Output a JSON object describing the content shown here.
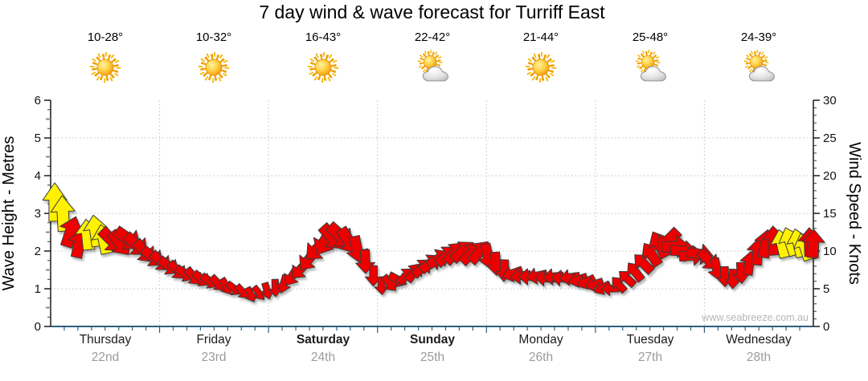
{
  "title": "7 day wind & wave forecast for Turriff East",
  "watermark": "www.seabreeze.com.au",
  "days": [
    {
      "name": "Thursday",
      "date": "22nd",
      "temp": "10-28°",
      "icon": "sunny",
      "weekend": false
    },
    {
      "name": "Friday",
      "date": "23rd",
      "temp": "10-32°",
      "icon": "sunny",
      "weekend": false
    },
    {
      "name": "Saturday",
      "date": "24th",
      "temp": "16-43°",
      "icon": "sunny",
      "weekend": true
    },
    {
      "name": "Sunday",
      "date": "25th",
      "temp": "22-42°",
      "icon": "partly-cloudy",
      "weekend": true
    },
    {
      "name": "Monday",
      "date": "26th",
      "temp": "21-44°",
      "icon": "sunny",
      "weekend": false
    },
    {
      "name": "Tuesday",
      "date": "27th",
      "temp": "25-48°",
      "icon": "partly-cloudy",
      "weekend": false
    },
    {
      "name": "Wednesday",
      "date": "28th",
      "temp": "24-39°",
      "icon": "partly-cloudy",
      "weekend": false
    }
  ],
  "left_axis": {
    "label": "Wave Height - Metres",
    "min": 0,
    "max": 6,
    "major_ticks": [
      0,
      1,
      2,
      3,
      4,
      5,
      6
    ]
  },
  "right_axis": {
    "label": "Wind Speed - Knots",
    "min": 0,
    "max": 30,
    "major_ticks": [
      0,
      5,
      10,
      15,
      20,
      25,
      30
    ]
  },
  "colors": {
    "arrow_red": "#ec0000",
    "arrow_yellow": "#fff100",
    "x_axis_blue": "#2b5f7f",
    "grid_gray": "#c0c0c0",
    "date_gray": "#9b9b9b",
    "watermark_gray": "#b6b6b6"
  },
  "chart_data": {
    "type": "wind-arrows",
    "title": "7 day wind & wave forecast for Turriff East",
    "x_unit": "hours_from_thursday_00",
    "x_range": [
      0,
      168
    ],
    "y_right_unit": "knots",
    "y_right_range": [
      0,
      30
    ],
    "y_left_unit": "metres",
    "y_left_range": [
      0,
      6
    ],
    "grid": true,
    "point_format": [
      "hour",
      "knots",
      "direction_deg_0_is_up",
      "color_y_or_r"
    ],
    "points": [
      [
        0.9,
        16.5,
        0,
        "y"
      ],
      [
        2.7,
        15.0,
        357,
        "y"
      ],
      [
        4.5,
        12.6,
        18,
        "r"
      ],
      [
        6.3,
        11.0,
        12,
        "r"
      ],
      [
        8.1,
        12.2,
        354,
        "y"
      ],
      [
        9.9,
        12.7,
        352,
        "y"
      ],
      [
        11.7,
        11.6,
        348,
        "y"
      ],
      [
        13.5,
        11.4,
        135,
        "r"
      ],
      [
        15.3,
        11.0,
        142,
        "r"
      ],
      [
        17.1,
        11.6,
        125,
        "r"
      ],
      [
        18.9,
        10.8,
        133,
        "r"
      ],
      [
        20.7,
        9.9,
        140,
        "r"
      ],
      [
        22.5,
        9.2,
        128,
        "r"
      ],
      [
        24.3,
        8.6,
        133,
        "r"
      ],
      [
        26.1,
        8.0,
        126,
        "r"
      ],
      [
        27.9,
        7.4,
        136,
        "r"
      ],
      [
        29.7,
        7.0,
        122,
        "r"
      ],
      [
        31.5,
        6.6,
        139,
        "r"
      ],
      [
        33.3,
        6.3,
        128,
        "r"
      ],
      [
        35.1,
        6.0,
        124,
        "r"
      ],
      [
        36.9,
        5.7,
        136,
        "r"
      ],
      [
        38.7,
        5.3,
        149,
        "r"
      ],
      [
        40.5,
        5.0,
        127,
        "r"
      ],
      [
        42.3,
        4.6,
        138,
        "r"
      ],
      [
        44.1,
        4.2,
        155,
        "r"
      ],
      [
        45.9,
        4.4,
        142,
        "r"
      ],
      [
        47.7,
        4.7,
        164,
        "r"
      ],
      [
        49.5,
        5.1,
        178,
        "r"
      ],
      [
        51.3,
        5.6,
        196,
        "r"
      ],
      [
        53.1,
        6.6,
        212,
        "r"
      ],
      [
        54.9,
        7.5,
        222,
        "r"
      ],
      [
        56.7,
        8.8,
        218,
        "r"
      ],
      [
        58.5,
        10.2,
        226,
        "r"
      ],
      [
        60.3,
        11.2,
        210,
        "r"
      ],
      [
        62.1,
        11.8,
        138,
        "r"
      ],
      [
        63.9,
        12.0,
        132,
        "r"
      ],
      [
        65.7,
        11.3,
        148,
        "r"
      ],
      [
        67.5,
        10.2,
        168,
        "r"
      ],
      [
        69.3,
        8.6,
        178,
        "r"
      ],
      [
        71.1,
        6.7,
        181,
        "r"
      ],
      [
        72.9,
        5.4,
        176,
        "r"
      ],
      [
        74.7,
        5.7,
        140,
        "r"
      ],
      [
        76.5,
        6.2,
        118,
        "r"
      ],
      [
        78.3,
        6.7,
        46,
        "r"
      ],
      [
        80.1,
        7.2,
        38,
        "r"
      ],
      [
        81.9,
        7.8,
        47,
        "r"
      ],
      [
        83.7,
        8.4,
        52,
        "r"
      ],
      [
        85.5,
        9.0,
        58,
        "r"
      ],
      [
        87.3,
        9.4,
        48,
        "r"
      ],
      [
        89.1,
        9.8,
        42,
        "r"
      ],
      [
        90.9,
        10.0,
        50,
        "r"
      ],
      [
        92.7,
        9.7,
        45,
        "r"
      ],
      [
        94.5,
        9.9,
        40,
        "r"
      ],
      [
        96.3,
        9.3,
        168,
        "r"
      ],
      [
        98.1,
        8.3,
        176,
        "r"
      ],
      [
        99.9,
        7.4,
        182,
        "r"
      ],
      [
        101.7,
        7.0,
        250,
        "r"
      ],
      [
        103.5,
        6.7,
        262,
        "r"
      ],
      [
        105.3,
        6.6,
        270,
        "r"
      ],
      [
        107.1,
        6.7,
        258,
        "r"
      ],
      [
        108.9,
        6.4,
        272,
        "r"
      ],
      [
        110.7,
        6.6,
        265,
        "r"
      ],
      [
        112.5,
        6.4,
        276,
        "r"
      ],
      [
        114.3,
        6.5,
        262,
        "r"
      ],
      [
        116.1,
        6.2,
        252,
        "r"
      ],
      [
        117.9,
        5.9,
        244,
        "r"
      ],
      [
        119.7,
        5.6,
        252,
        "r"
      ],
      [
        121.5,
        5.1,
        240,
        "r"
      ],
      [
        123.3,
        5.0,
        268,
        "r"
      ],
      [
        125.1,
        5.6,
        318,
        "r"
      ],
      [
        126.9,
        6.4,
        312,
        "r"
      ],
      [
        128.7,
        7.3,
        322,
        "r"
      ],
      [
        130.5,
        8.4,
        315,
        "r"
      ],
      [
        132.3,
        9.6,
        326,
        "r"
      ],
      [
        134.1,
        10.9,
        332,
        "r"
      ],
      [
        135.9,
        11.3,
        225,
        "r"
      ],
      [
        137.7,
        10.6,
        88,
        "r"
      ],
      [
        139.5,
        10.0,
        94,
        "r"
      ],
      [
        141.3,
        9.4,
        86,
        "r"
      ],
      [
        143.1,
        9.6,
        98,
        "r"
      ],
      [
        144.9,
        8.8,
        135,
        "r"
      ],
      [
        146.7,
        7.6,
        168,
        "r"
      ],
      [
        148.5,
        6.6,
        178,
        "r"
      ],
      [
        150.3,
        6.3,
        182,
        "r"
      ],
      [
        152.1,
        7.1,
        176,
        "r"
      ],
      [
        153.9,
        8.4,
        8,
        "r"
      ],
      [
        155.7,
        9.9,
        4,
        "r"
      ],
      [
        157.5,
        11.0,
        9,
        "r"
      ],
      [
        159.3,
        11.4,
        356,
        "r"
      ],
      [
        161.1,
        11.0,
        347,
        "y"
      ],
      [
        162.9,
        11.3,
        341,
        "y"
      ],
      [
        164.7,
        11.1,
        346,
        "y"
      ],
      [
        166.1,
        10.6,
        342,
        "y"
      ],
      [
        167.2,
        11.2,
        358,
        "r"
      ],
      [
        168.0,
        11.0,
        2,
        "r"
      ]
    ]
  }
}
